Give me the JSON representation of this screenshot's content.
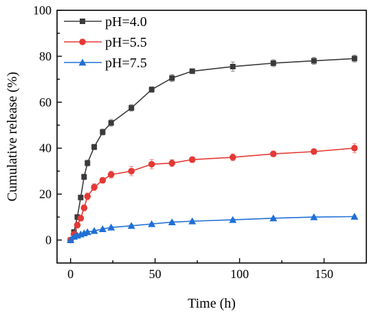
{
  "chart_data": {
    "type": "line",
    "title": "",
    "xlabel": "Time (h)",
    "ylabel": "Cumulative release (%)",
    "xlim": [
      -8,
      175
    ],
    "ylim": [
      -10,
      100
    ],
    "xticks": [
      0,
      50,
      100,
      150
    ],
    "yticks": [
      0,
      20,
      40,
      60,
      80,
      100
    ],
    "grid": false,
    "legend_position": "top-left",
    "series": [
      {
        "name": "pH=4.0",
        "color": "#3a3a3a",
        "marker": "square",
        "x": [
          0,
          2,
          4,
          6,
          8,
          10,
          14,
          19,
          24,
          36,
          48,
          60,
          72,
          96,
          120,
          144,
          168
        ],
        "y": [
          0,
          3.5,
          10,
          18.5,
          27.5,
          33.5,
          40.5,
          47,
          51,
          57.5,
          65.5,
          70.5,
          73.5,
          75.5,
          77,
          78,
          79
        ],
        "err": [
          0,
          0.5,
          0.8,
          1,
          1.2,
          1.3,
          1.2,
          1.3,
          1.5,
          1.4,
          1.2,
          1.5,
          1,
          2,
          1.5,
          1.5,
          1.5
        ]
      },
      {
        "name": "pH=5.5",
        "color": "#e53935",
        "marker": "circle",
        "x": [
          0,
          2,
          4,
          6,
          8,
          10,
          14,
          19,
          24,
          36,
          48,
          60,
          72,
          96,
          120,
          144,
          168
        ],
        "y": [
          0,
          2.5,
          6.5,
          9.5,
          14,
          19,
          23,
          26,
          28.5,
          30,
          33,
          33.5,
          35,
          36,
          37.5,
          38.5,
          40
        ],
        "err": [
          0,
          0.5,
          1,
          1.2,
          1.3,
          1.5,
          1.5,
          1.2,
          1.5,
          2,
          2,
          1.5,
          1.2,
          1.5,
          1.2,
          1.2,
          2
        ]
      },
      {
        "name": "pH=7.5",
        "color": "#1f6fd6",
        "marker": "triangle",
        "x": [
          0,
          2,
          4,
          6,
          8,
          10,
          14,
          19,
          24,
          36,
          48,
          60,
          72,
          96,
          120,
          144,
          168
        ],
        "y": [
          0,
          1.5,
          2,
          2.5,
          3,
          3.5,
          4,
          4.8,
          5.5,
          6.2,
          7,
          7.8,
          8.2,
          8.8,
          9.5,
          10,
          10.2
        ],
        "err": [
          0,
          0.3,
          0.3,
          0.4,
          0.4,
          0.4,
          0.5,
          0.5,
          0.5,
          0.5,
          0.5,
          0.5,
          0.5,
          0.5,
          0.5,
          0.5,
          0.5
        ]
      }
    ]
  }
}
